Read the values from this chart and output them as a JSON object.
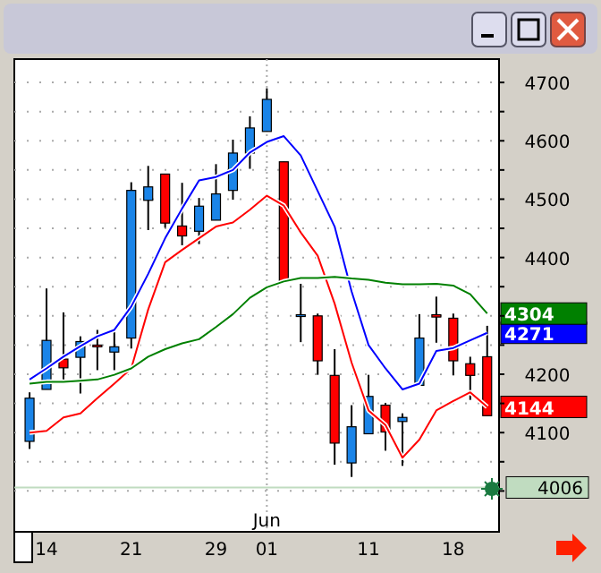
{
  "chart_data": {
    "type": "candlestick",
    "categories": [
      null,
      "14",
      null,
      null,
      null,
      null,
      "21",
      null,
      null,
      null,
      null,
      "29",
      null,
      null,
      "01",
      null,
      null,
      null,
      null,
      null,
      "11",
      null,
      null,
      null,
      null,
      "18",
      null,
      null
    ],
    "ohlc": [
      [
        4085,
        4169,
        4072,
        4159
      ],
      [
        4174,
        4347,
        4174,
        4258
      ],
      [
        4226,
        4306,
        4191,
        4211
      ],
      [
        4229,
        4265,
        4167,
        4256
      ],
      [
        4250,
        4276,
        4207,
        4247
      ],
      [
        4238,
        4276,
        4207,
        4247
      ],
      [
        4262,
        4529,
        4244,
        4515
      ],
      [
        4498,
        4557,
        4447,
        4521
      ],
      [
        4543,
        4543,
        4451,
        4459
      ],
      [
        4454,
        4528,
        4421,
        4437
      ],
      [
        4445,
        4502,
        4423,
        4488
      ],
      [
        4464,
        4560,
        4464,
        4509
      ],
      [
        4515,
        4602,
        4499,
        4579
      ],
      [
        4579,
        4642,
        4552,
        4622
      ],
      [
        4616,
        4690,
        4616,
        4671
      ],
      [
        4564,
        4564,
        4360,
        4360
      ],
      [
        4300,
        4355,
        4255,
        4302
      ],
      [
        4300,
        4304,
        4199,
        4223
      ],
      [
        4198,
        4243,
        4045,
        4082
      ],
      [
        4048,
        4147,
        4024,
        4110
      ],
      [
        4098,
        4199,
        4098,
        4162
      ],
      [
        4147,
        4151,
        4069,
        4101
      ],
      [
        4119,
        4133,
        4043,
        4126
      ],
      [
        4181,
        4303,
        4181,
        4262
      ],
      [
        4302,
        4333,
        4254,
        4298
      ],
      [
        4296,
        4304,
        4198,
        4223
      ],
      [
        4218,
        4230,
        4156,
        4198
      ],
      [
        4230,
        4283,
        4129,
        4129
      ]
    ],
    "colors": [
      "#1a84e8",
      "#1a84e8",
      "#ff0000",
      "#1a84e8",
      "#ff0000",
      "#1a84e8",
      "#1a84e8",
      "#1a84e8",
      "#ff0000",
      "#ff0000",
      "#1a84e8",
      "#1a84e8",
      "#1a84e8",
      "#1a84e8",
      "#1a84e8",
      "#ff0000",
      "#1a84e8",
      "#ff0000",
      "#ff0000",
      "#1a84e8",
      "#1a84e8",
      "#ff0000",
      "#1a84e8",
      "#1a84e8",
      "#ff0000",
      "#ff0000",
      "#ff0000",
      "#ff0000"
    ],
    "series": [
      {
        "type": "line",
        "color": "#0000ff",
        "values": [
          4191,
          4210,
          4230,
          4248,
          4265,
          4276,
          4316,
          4372,
          4433,
          4484,
          4532,
          4538,
          4550,
          4580,
          4598,
          4608,
          4575,
          4514,
          4453,
          4342,
          4250,
          4210,
          4174,
          4184,
          4240,
          4245,
          4258,
          4271
        ],
        "value_labels": [
          null,
          null,
          null,
          null,
          null,
          null,
          null,
          null,
          null,
          null,
          null,
          null,
          null,
          null,
          null,
          null,
          null,
          null,
          null,
          null,
          null,
          null,
          null,
          null,
          null,
          null,
          null,
          "4271"
        ]
      },
      {
        "type": "line",
        "color": "#ff0000",
        "values": [
          4100,
          4103,
          4126,
          4133,
          4159,
          4184,
          4210,
          4311,
          4392,
          4413,
          4433,
          4453,
          4460,
          4482,
          4506,
          4489,
          4443,
          4403,
          4321,
          4220,
          4138,
          4113,
          4057,
          4088,
          4138,
          4154,
          4169,
          4144
        ],
        "value_labels": [
          null,
          null,
          null,
          null,
          null,
          null,
          null,
          null,
          null,
          null,
          null,
          null,
          null,
          null,
          null,
          null,
          null,
          null,
          null,
          null,
          null,
          null,
          null,
          null,
          null,
          null,
          null,
          "4144"
        ]
      },
      {
        "type": "line",
        "color": "#008000",
        "values": [
          4184,
          4187,
          4187,
          4189,
          4191,
          4199,
          4210,
          4230,
          4243,
          4253,
          4260,
          4281,
          4303,
          4331,
          4349,
          4359,
          4365,
          4365,
          4367,
          4364,
          4362,
          4357,
          4354,
          4354,
          4355,
          4352,
          4337,
          4304
        ],
        "value_labels": [
          null,
          null,
          null,
          null,
          null,
          null,
          null,
          null,
          null,
          null,
          null,
          null,
          null,
          null,
          null,
          null,
          null,
          null,
          null,
          null,
          null,
          null,
          null,
          null,
          null,
          null,
          null,
          "4304"
        ]
      }
    ],
    "ylim": [
      3930,
      4740
    ],
    "yticks": [
      {
        "value": 4000,
        "label": null
      },
      {
        "value": 4050,
        "label": null
      },
      4100,
      {
        "value": 4150,
        "label": null
      },
      4200,
      {
        "value": 4250,
        "label": null
      },
      {
        "value": 4300,
        "label": null
      },
      {
        "value": 4350,
        "label": null
      },
      4400,
      {
        "value": 4450,
        "label": null
      },
      4500,
      {
        "value": 4550,
        "label": null
      },
      4600,
      {
        "value": 4650,
        "label": null
      },
      4700
    ],
    "grid": "y",
    "ref_lines": [
      {
        "axis": "y",
        "value": 4006,
        "label": "4006",
        "color": "#c0dcc0"
      },
      {
        "axis": "x",
        "value": "01",
        "color": "#aaaaaa",
        "line_style": "dotted"
      }
    ],
    "annotations": [
      {
        "text": "Jun",
        "x": "01"
      }
    ]
  }
}
